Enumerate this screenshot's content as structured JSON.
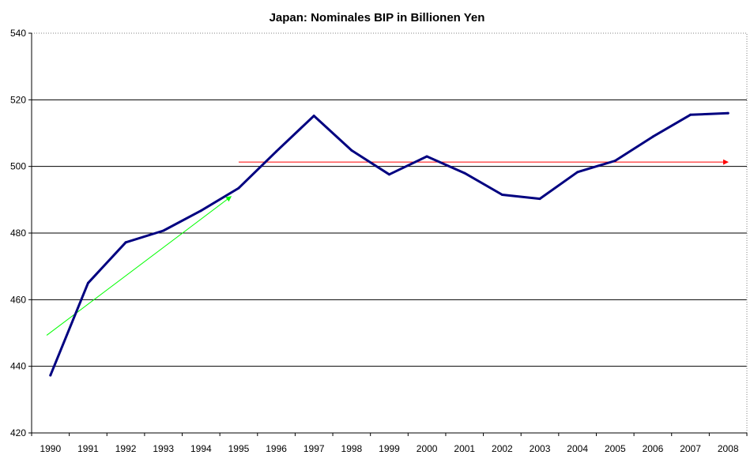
{
  "chart_data": {
    "type": "line",
    "title": "Japan: Nominales BIP in Billionen Yen",
    "xlabel": "",
    "ylabel": "",
    "ylim": [
      420,
      540
    ],
    "yticks": [
      420,
      440,
      460,
      480,
      500,
      520,
      540
    ],
    "grid": "horizontal",
    "categories": [
      "1990",
      "1991",
      "1992",
      "1993",
      "1994",
      "1995",
      "1996",
      "1997",
      "1998",
      "1999",
      "2000",
      "2001",
      "2002",
      "2003",
      "2004",
      "2005",
      "2006",
      "2007",
      "2008"
    ],
    "series": [
      {
        "values": [
          437.3,
          465.0,
          477.2,
          480.7,
          486.7,
          493.5,
          504.5,
          515.2,
          504.8,
          497.6,
          503.0,
          498.0,
          491.5,
          490.3,
          498.3,
          501.7,
          508.9,
          515.5,
          516.0
        ],
        "color": "#000080"
      }
    ],
    "annotations": [
      {
        "kind": "arrow",
        "color": "#00ff00",
        "from": {
          "x": 1989.9,
          "y": 449.3
        },
        "to": {
          "x": 1994.8,
          "y": 491.0
        }
      },
      {
        "kind": "arrow",
        "color": "#ff0000",
        "from": {
          "x": 1995.0,
          "y": 501.3
        },
        "to": {
          "x": 2008.0,
          "y": 501.3
        }
      }
    ]
  }
}
